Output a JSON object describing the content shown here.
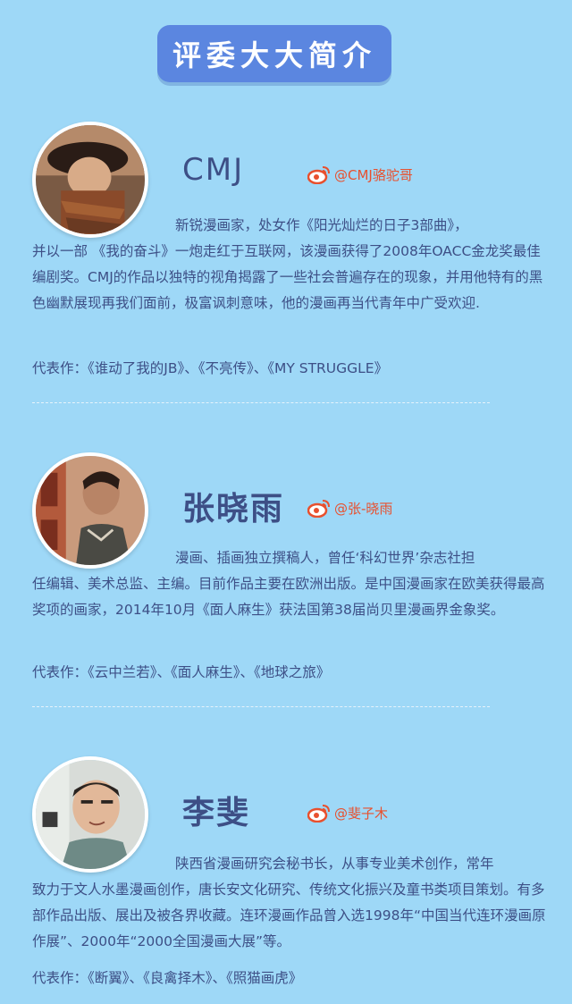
{
  "header": {
    "title": "评委大大简介"
  },
  "judges": [
    {
      "name": "CMJ",
      "weibo": "@CMJ骆驼哥",
      "bio_first": "新锐漫画家，处女作《阳光灿烂的日子3部曲》，",
      "bio_rest": "并以一部 《我的奋斗》一炮走红于互联网，该漫画获得了2008年OACC金龙奖最佳编剧奖。CMJ的作品以独特的视角揭露了一些社会普遍存在的现象，并用他特有的黑色幽默展现再我们面前，极富讽刺意味，他的漫画再当代青年中广受欢迎.",
      "works": "代表作：《谁动了我的JB》、《不亮传》、《MY STRUGGLE》"
    },
    {
      "name": "张晓雨",
      "weibo": "@张-晓雨",
      "bio_first": "漫画、插画独立撰稿人，曾任‘科幻世界’杂志社担",
      "bio_rest": "任编辑、美术总监、主编。目前作品主要在欧洲出版。是中国漫画家在欧美获得最高奖项的画家，2014年10月《面人麻生》获法国第38届尚贝里漫画界金象奖。",
      "works": "代表作：《云中兰若》、《面人麻生》、《地球之旅》"
    },
    {
      "name": "李斐",
      "weibo": "@斐子木",
      "bio_first": "陕西省漫画研究会秘书长，从事专业美术创作，常年",
      "bio_rest": "致力于文人水墨漫画创作，唐长安文化研究、传统文化振兴及童书类项目策划。有多部作品出版、展出及被各界收藏。连环漫画作品曾入选1998年“中国当代连环漫画原作展”、2000年“2000全国漫画大展”等。",
      "works": "代表作：《断翼》、《良禽择木》、《照猫画虎》"
    }
  ],
  "icons": {
    "weibo": "weibo-icon",
    "avatar": "avatar-photo"
  },
  "colors": {
    "background": "#9ed8f7",
    "badge": "#5b86e0",
    "text": "#3d4f86",
    "weibo": "#e8502e"
  }
}
